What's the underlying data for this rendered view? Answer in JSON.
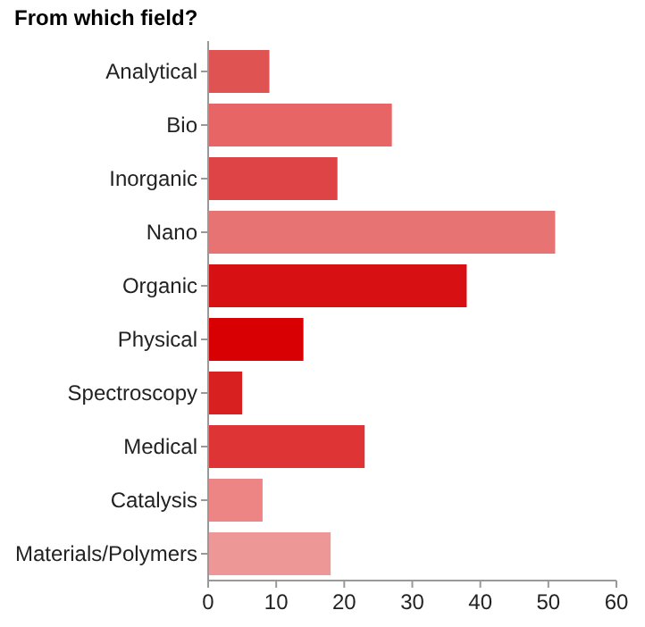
{
  "chart_data": {
    "type": "bar",
    "orientation": "horizontal",
    "title": "From which field?",
    "categories": [
      "Analytical",
      "Bio",
      "Inorganic",
      "Nano",
      "Organic",
      "Physical",
      "Spectroscopy",
      "Medical",
      "Catalysis",
      "Materials/Polymers"
    ],
    "values": [
      9,
      27,
      19,
      51,
      38,
      14,
      5,
      23,
      8,
      18
    ],
    "colors": [
      "#df5353",
      "#e86565",
      "#de4345",
      "#e87373",
      "#d61013",
      "#d80002",
      "#d82020",
      "#de3436",
      "#ee8585",
      "#ee9797"
    ],
    "xlim": [
      0,
      60
    ],
    "xticks": [
      0,
      10,
      20,
      30,
      40,
      50,
      60
    ],
    "grid": false
  }
}
